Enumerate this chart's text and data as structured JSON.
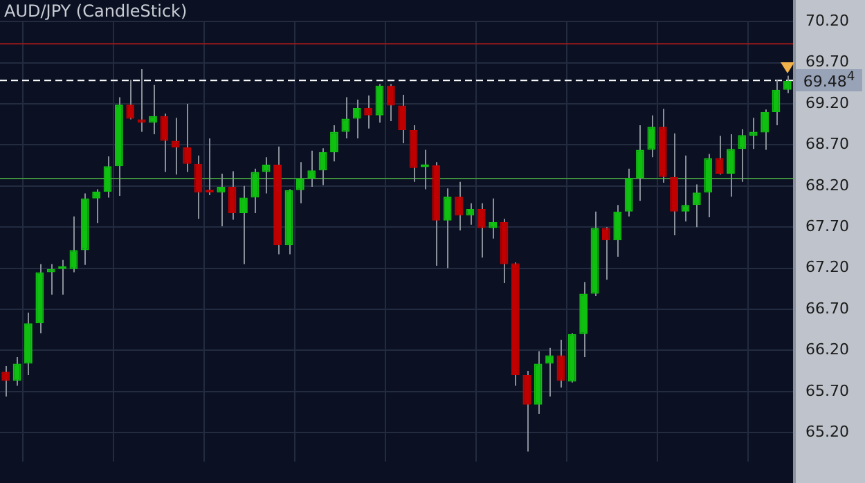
{
  "chart_data": {
    "type": "candlestick",
    "title": "AUD/JPY (CandleStick)",
    "categories": [
      null,
      null,
      null,
      null,
      null,
      null,
      null,
      null,
      null,
      null,
      null,
      null,
      null,
      null,
      null,
      null,
      null,
      null,
      null,
      null,
      null,
      null,
      null,
      null,
      null,
      null,
      null,
      null,
      null,
      null,
      null,
      null,
      null,
      null,
      null,
      null,
      null,
      null,
      null,
      null,
      null,
      null,
      null,
      null,
      null,
      null,
      null,
      null,
      null,
      null,
      null,
      null,
      null,
      null,
      null,
      null,
      null,
      null,
      null,
      null,
      null,
      null,
      null,
      null,
      null,
      null,
      null,
      null,
      null,
      null
    ],
    "ohlc": [
      [
        65.94,
        66.01,
        65.64,
        65.83
      ],
      [
        65.83,
        66.12,
        65.77,
        66.04
      ],
      [
        66.04,
        66.66,
        65.9,
        66.53
      ],
      [
        66.53,
        67.25,
        66.41,
        67.15
      ],
      [
        67.15,
        67.25,
        66.88,
        67.19
      ],
      [
        67.19,
        67.3,
        66.88,
        67.2
      ],
      [
        67.19,
        67.83,
        67.15,
        67.42
      ],
      [
        67.42,
        68.11,
        67.24,
        68.05
      ],
      [
        68.05,
        68.16,
        67.75,
        68.13
      ],
      [
        68.13,
        68.56,
        68.06,
        68.44
      ],
      [
        68.44,
        69.28,
        68.08,
        69.19
      ],
      [
        69.19,
        69.49,
        69.01,
        69.02
      ],
      [
        69.01,
        69.62,
        68.86,
        68.97
      ],
      [
        68.97,
        69.43,
        68.83,
        69.05
      ],
      [
        69.05,
        69.08,
        68.37,
        68.75
      ],
      [
        68.75,
        69.03,
        68.34,
        68.67
      ],
      [
        68.67,
        69.2,
        68.37,
        68.47
      ],
      [
        68.47,
        68.57,
        67.8,
        68.12
      ],
      [
        68.13,
        68.78,
        68.09,
        68.12
      ],
      [
        68.12,
        68.35,
        67.71,
        68.19
      ],
      [
        68.19,
        68.38,
        67.79,
        67.87
      ],
      [
        67.87,
        68.2,
        67.25,
        68.06
      ],
      [
        68.06,
        68.41,
        67.87,
        68.37
      ],
      [
        68.37,
        68.55,
        68.11,
        68.46
      ],
      [
        68.46,
        68.68,
        67.37,
        67.48
      ],
      [
        67.48,
        68.16,
        67.37,
        68.15
      ],
      [
        68.15,
        68.49,
        67.99,
        68.29
      ],
      [
        68.29,
        68.63,
        68.19,
        68.39
      ],
      [
        68.39,
        68.66,
        68.21,
        68.61
      ],
      [
        68.61,
        68.94,
        68.5,
        68.86
      ],
      [
        68.86,
        69.28,
        68.78,
        69.02
      ],
      [
        69.02,
        69.25,
        68.78,
        69.15
      ],
      [
        69.15,
        69.3,
        68.9,
        69.06
      ],
      [
        69.06,
        69.44,
        68.97,
        69.42
      ],
      [
        69.42,
        69.44,
        68.99,
        69.18
      ],
      [
        69.18,
        69.31,
        68.72,
        68.88
      ],
      [
        68.88,
        68.94,
        68.25,
        68.42
      ],
      [
        68.43,
        68.64,
        68.16,
        68.46
      ],
      [
        68.45,
        68.49,
        67.23,
        67.78
      ],
      [
        67.78,
        68.17,
        67.2,
        68.07
      ],
      [
        68.07,
        68.25,
        67.66,
        67.84
      ],
      [
        67.84,
        67.99,
        67.73,
        67.92
      ],
      [
        67.92,
        67.99,
        67.33,
        67.69
      ],
      [
        67.69,
        68.05,
        67.56,
        67.76
      ],
      [
        67.76,
        67.8,
        67.02,
        67.25
      ],
      [
        67.26,
        67.27,
        65.77,
        65.9
      ],
      [
        65.9,
        65.95,
        64.97,
        65.54
      ],
      [
        65.54,
        66.19,
        65.43,
        66.04
      ],
      [
        66.04,
        66.23,
        65.64,
        66.14
      ],
      [
        66.14,
        66.33,
        65.75,
        65.83
      ],
      [
        65.82,
        66.41,
        65.81,
        66.4
      ],
      [
        66.4,
        67.03,
        66.12,
        66.89
      ],
      [
        66.89,
        67.89,
        66.86,
        67.69
      ],
      [
        67.69,
        67.7,
        67.06,
        67.54
      ],
      [
        67.54,
        67.97,
        67.34,
        67.89
      ],
      [
        67.89,
        68.41,
        67.83,
        68.3
      ],
      [
        68.3,
        68.94,
        68.02,
        68.64
      ],
      [
        68.64,
        69.06,
        68.55,
        68.92
      ],
      [
        68.92,
        69.14,
        68.24,
        68.31
      ],
      [
        68.31,
        68.84,
        67.6,
        67.89
      ],
      [
        67.89,
        68.57,
        67.77,
        67.97
      ],
      [
        67.97,
        68.22,
        67.7,
        68.12
      ],
      [
        68.12,
        68.59,
        67.82,
        68.54
      ],
      [
        68.54,
        68.81,
        68.34,
        68.35
      ],
      [
        68.35,
        68.83,
        68.07,
        68.65
      ],
      [
        68.65,
        68.89,
        68.25,
        68.82
      ],
      [
        68.81,
        69.03,
        68.65,
        68.86
      ],
      [
        68.85,
        69.13,
        68.64,
        69.1
      ],
      [
        69.1,
        69.49,
        68.94,
        69.37
      ],
      [
        69.37,
        69.54,
        69.33,
        69.48
      ]
    ],
    "ylim": [
      64.85,
      70.2
    ],
    "yticks": [
      {
        "value": 65.2,
        "label": "65.20"
      },
      {
        "value": 65.7,
        "label": "65.70"
      },
      {
        "value": 66.2,
        "label": "66.20"
      },
      {
        "value": 66.7,
        "label": "66.70"
      },
      {
        "value": 67.2,
        "label": "67.20"
      },
      {
        "value": 67.7,
        "label": "67.70"
      },
      {
        "value": 68.2,
        "label": "68.20"
      },
      {
        "value": 68.7,
        "label": "68.70"
      },
      {
        "value": 69.2,
        "label": "69.20"
      },
      {
        "value": 69.7,
        "label": "69.70"
      },
      {
        "value": 70.2,
        "label": "70.20"
      }
    ],
    "grid": true,
    "tick_labels": "y",
    "ref_lines": [
      {
        "axis": "y",
        "value": 69.93,
        "color": "#9a1a1a"
      },
      {
        "axis": "y",
        "value": 68.29,
        "color": "#3d8f3d"
      },
      {
        "axis": "y",
        "value": 69.484,
        "label": "69.48$^{4}$",
        "color": "#ffffff",
        "line_style": "dashed"
      }
    ]
  }
}
